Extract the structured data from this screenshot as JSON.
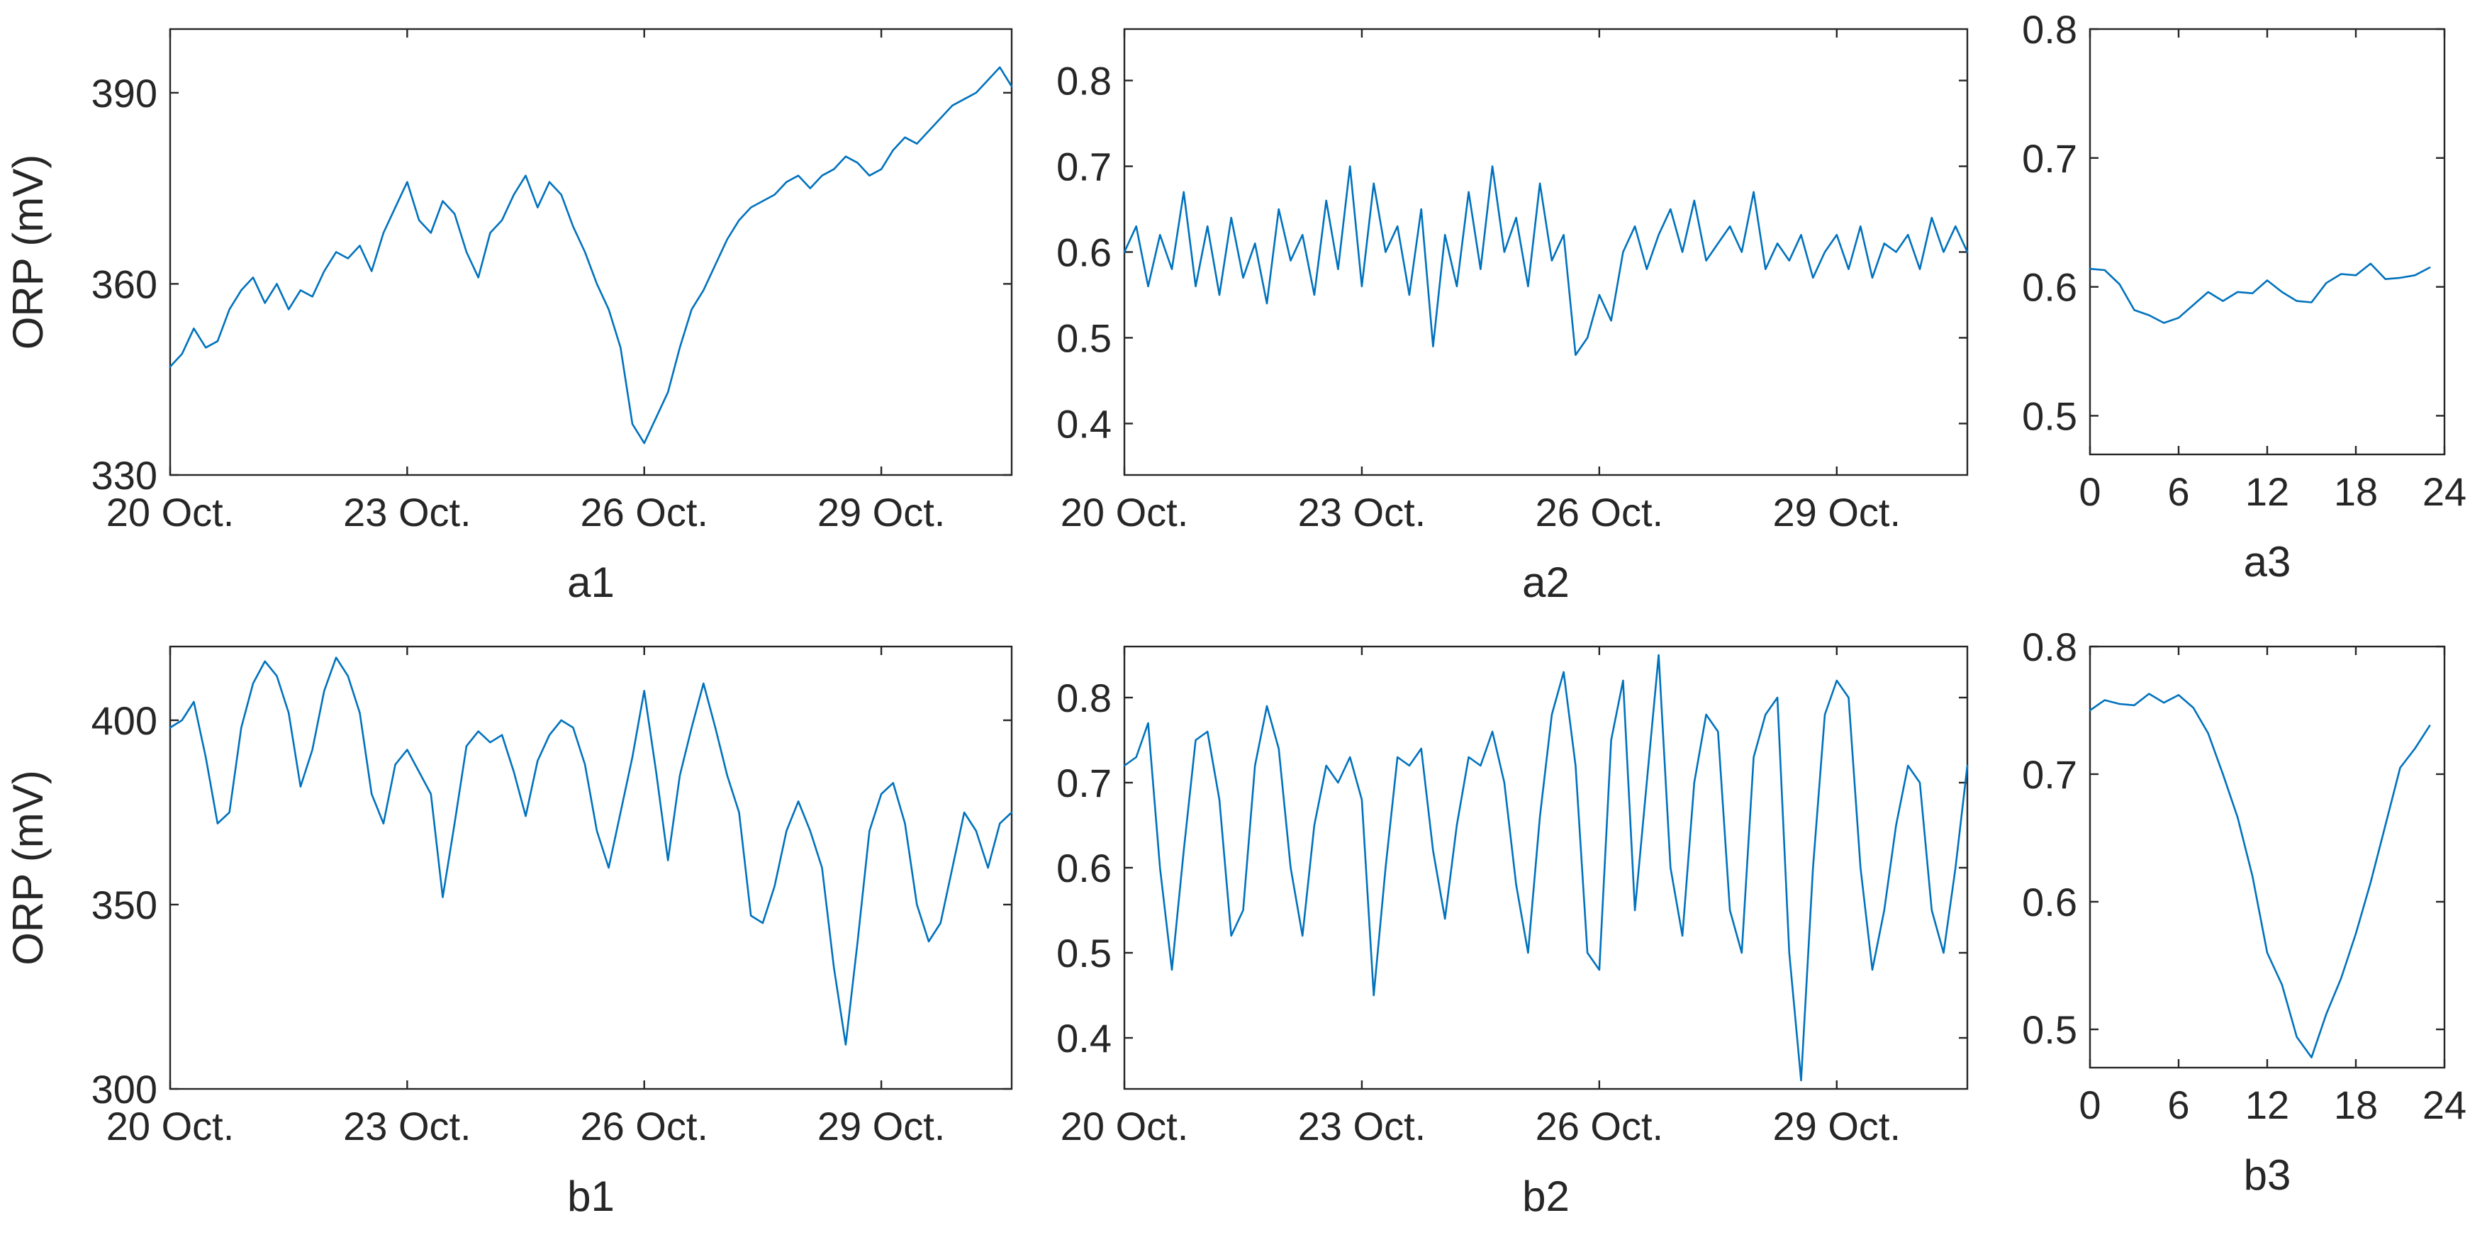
{
  "colors": {
    "series": "#0072bd",
    "axes": "#262626",
    "background": "#ffffff"
  },
  "chart_data": [
    {
      "id": "a1",
      "type": "line",
      "panel_label": "a1",
      "ylabel": "ORP (mV)",
      "xlabel": "",
      "xlim": [
        0,
        10.65
      ],
      "ylim": [
        330,
        400
      ],
      "xticks": [
        0,
        3,
        6,
        9
      ],
      "xtick_labels": [
        "20 Oct.",
        "23 Oct.",
        "26 Oct.",
        "29 Oct."
      ],
      "yticks": [
        330,
        360,
        390
      ],
      "ytick_labels": [
        "330",
        "360",
        "390"
      ],
      "grid": false,
      "legend": "none",
      "x": [
        0,
        0.15,
        0.3,
        0.45,
        0.6,
        0.75,
        0.9,
        1.05,
        1.2,
        1.35,
        1.5,
        1.65,
        1.8,
        1.95,
        2.1,
        2.25,
        2.4,
        2.55,
        2.7,
        2.85,
        3.0,
        3.15,
        3.3,
        3.45,
        3.6,
        3.75,
        3.9,
        4.05,
        4.2,
        4.35,
        4.5,
        4.65,
        4.8,
        4.95,
        5.1,
        5.25,
        5.4,
        5.55,
        5.7,
        5.85,
        6.0,
        6.15,
        6.3,
        6.45,
        6.6,
        6.75,
        6.9,
        7.05,
        7.2,
        7.35,
        7.5,
        7.65,
        7.8,
        7.95,
        8.1,
        8.25,
        8.4,
        8.55,
        8.7,
        8.85,
        9.0,
        9.15,
        9.3,
        9.45,
        9.6,
        9.75,
        9.9,
        10.05,
        10.2,
        10.35,
        10.5,
        10.65
      ],
      "y": [
        347,
        349,
        353,
        350,
        351,
        356,
        359,
        361,
        357,
        360,
        356,
        359,
        358,
        362,
        365,
        364,
        366,
        362,
        368,
        372,
        376,
        370,
        368,
        373,
        371,
        365,
        361,
        368,
        370,
        374,
        377,
        372,
        376,
        374,
        369,
        365,
        360,
        356,
        350,
        338,
        335,
        339,
        343,
        350,
        356,
        359,
        363,
        367,
        370,
        372,
        373,
        374,
        376,
        377,
        375,
        377,
        378,
        380,
        379,
        377,
        378,
        381,
        383,
        382,
        384,
        386,
        388,
        389,
        390,
        392,
        394,
        391
      ]
    },
    {
      "id": "a2",
      "type": "line",
      "panel_label": "a2",
      "ylabel": "",
      "xlabel": "",
      "xlim": [
        0,
        10.65
      ],
      "ylim": [
        0.34,
        0.86
      ],
      "xticks": [
        0,
        3,
        6,
        9
      ],
      "xtick_labels": [
        "20 Oct.",
        "23 Oct.",
        "26 Oct.",
        "29 Oct."
      ],
      "yticks": [
        0.4,
        0.5,
        0.6,
        0.7,
        0.8
      ],
      "ytick_labels": [
        "0.4",
        "0.5",
        "0.6",
        "0.7",
        "0.8"
      ],
      "grid": false,
      "legend": "none",
      "x": [
        0,
        0.15,
        0.3,
        0.45,
        0.6,
        0.75,
        0.9,
        1.05,
        1.2,
        1.35,
        1.5,
        1.65,
        1.8,
        1.95,
        2.1,
        2.25,
        2.4,
        2.55,
        2.7,
        2.85,
        3.0,
        3.15,
        3.3,
        3.45,
        3.6,
        3.75,
        3.9,
        4.05,
        4.2,
        4.35,
        4.5,
        4.65,
        4.8,
        4.95,
        5.1,
        5.25,
        5.4,
        5.55,
        5.7,
        5.85,
        6.0,
        6.15,
        6.3,
        6.45,
        6.6,
        6.75,
        6.9,
        7.05,
        7.2,
        7.35,
        7.5,
        7.65,
        7.8,
        7.95,
        8.1,
        8.25,
        8.4,
        8.55,
        8.7,
        8.85,
        9.0,
        9.15,
        9.3,
        9.45,
        9.6,
        9.75,
        9.9,
        10.05,
        10.2,
        10.35,
        10.5,
        10.65
      ],
      "y": [
        0.6,
        0.63,
        0.56,
        0.62,
        0.58,
        0.67,
        0.56,
        0.63,
        0.55,
        0.64,
        0.57,
        0.61,
        0.54,
        0.65,
        0.59,
        0.62,
        0.55,
        0.66,
        0.58,
        0.7,
        0.56,
        0.68,
        0.6,
        0.63,
        0.55,
        0.65,
        0.49,
        0.62,
        0.56,
        0.67,
        0.58,
        0.7,
        0.6,
        0.64,
        0.56,
        0.68,
        0.59,
        0.62,
        0.48,
        0.5,
        0.55,
        0.52,
        0.6,
        0.63,
        0.58,
        0.62,
        0.65,
        0.6,
        0.66,
        0.59,
        0.61,
        0.63,
        0.6,
        0.67,
        0.58,
        0.61,
        0.59,
        0.62,
        0.57,
        0.6,
        0.62,
        0.58,
        0.63,
        0.57,
        0.61,
        0.6,
        0.62,
        0.58,
        0.64,
        0.6,
        0.63,
        0.6
      ]
    },
    {
      "id": "a3",
      "type": "line",
      "panel_label": "a3",
      "ylabel": "",
      "xlabel": "",
      "xlim": [
        0,
        24
      ],
      "ylim": [
        0.47,
        0.8
      ],
      "xticks": [
        0,
        6,
        12,
        18,
        24
      ],
      "xtick_labels": [
        "0",
        "6",
        "12",
        "18",
        "24"
      ],
      "yticks": [
        0.5,
        0.6,
        0.7,
        0.8
      ],
      "ytick_labels": [
        "0.5",
        "0.6",
        "0.7",
        "0.8"
      ],
      "grid": false,
      "legend": "none",
      "x": [
        0,
        1,
        2,
        3,
        4,
        5,
        6,
        7,
        8,
        9,
        10,
        11,
        12,
        13,
        14,
        15,
        16,
        17,
        18,
        19,
        20,
        21,
        22,
        23
      ],
      "y": [
        0.614,
        0.613,
        0.602,
        0.582,
        0.578,
        0.572,
        0.576,
        0.586,
        0.596,
        0.589,
        0.596,
        0.595,
        0.605,
        0.596,
        0.589,
        0.588,
        0.603,
        0.61,
        0.609,
        0.618,
        0.606,
        0.607,
        0.609,
        0.615
      ]
    },
    {
      "id": "b1",
      "type": "line",
      "panel_label": "b1",
      "ylabel": "ORP (mV)",
      "xlabel": "",
      "xlim": [
        0,
        10.65
      ],
      "ylim": [
        300,
        420
      ],
      "xticks": [
        0,
        3,
        6,
        9
      ],
      "xtick_labels": [
        "20 Oct.",
        "23 Oct.",
        "26 Oct.",
        "29 Oct."
      ],
      "yticks": [
        300,
        350,
        400
      ],
      "ytick_labels": [
        "300",
        "350",
        "400"
      ],
      "grid": false,
      "legend": "none",
      "x": [
        0,
        0.15,
        0.3,
        0.45,
        0.6,
        0.75,
        0.9,
        1.05,
        1.2,
        1.35,
        1.5,
        1.65,
        1.8,
        1.95,
        2.1,
        2.25,
        2.4,
        2.55,
        2.7,
        2.85,
        3.0,
        3.15,
        3.3,
        3.45,
        3.6,
        3.75,
        3.9,
        4.05,
        4.2,
        4.35,
        4.5,
        4.65,
        4.8,
        4.95,
        5.1,
        5.25,
        5.4,
        5.55,
        5.7,
        5.85,
        6.0,
        6.15,
        6.3,
        6.45,
        6.6,
        6.75,
        6.9,
        7.05,
        7.2,
        7.35,
        7.5,
        7.65,
        7.8,
        7.95,
        8.1,
        8.25,
        8.4,
        8.55,
        8.7,
        8.85,
        9.0,
        9.15,
        9.3,
        9.45,
        9.6,
        9.75,
        9.9,
        10.05,
        10.2,
        10.35,
        10.5,
        10.65
      ],
      "y": [
        398,
        400,
        405,
        390,
        372,
        375,
        398,
        410,
        416,
        412,
        402,
        382,
        392,
        408,
        417,
        412,
        402,
        380,
        372,
        388,
        392,
        386,
        380,
        352,
        372,
        393,
        397,
        394,
        396,
        386,
        374,
        389,
        396,
        400,
        398,
        388,
        370,
        360,
        375,
        390,
        408,
        386,
        362,
        385,
        398,
        410,
        398,
        385,
        375,
        347,
        345,
        355,
        370,
        378,
        370,
        360,
        333,
        312,
        340,
        370,
        380,
        383,
        372,
        350,
        340,
        345,
        360,
        375,
        370,
        360,
        372,
        375
      ]
    },
    {
      "id": "b2",
      "type": "line",
      "panel_label": "b2",
      "ylabel": "",
      "xlabel": "",
      "xlim": [
        0,
        10.65
      ],
      "ylim": [
        0.34,
        0.86
      ],
      "xticks": [
        0,
        3,
        6,
        9
      ],
      "xtick_labels": [
        "20 Oct.",
        "23 Oct.",
        "26 Oct.",
        "29 Oct."
      ],
      "yticks": [
        0.4,
        0.5,
        0.6,
        0.7,
        0.8
      ],
      "ytick_labels": [
        "0.4",
        "0.5",
        "0.6",
        "0.7",
        "0.8"
      ],
      "grid": false,
      "legend": "none",
      "x": [
        0,
        0.15,
        0.3,
        0.45,
        0.6,
        0.75,
        0.9,
        1.05,
        1.2,
        1.35,
        1.5,
        1.65,
        1.8,
        1.95,
        2.1,
        2.25,
        2.4,
        2.55,
        2.7,
        2.85,
        3.0,
        3.15,
        3.3,
        3.45,
        3.6,
        3.75,
        3.9,
        4.05,
        4.2,
        4.35,
        4.5,
        4.65,
        4.8,
        4.95,
        5.1,
        5.25,
        5.4,
        5.55,
        5.7,
        5.85,
        6.0,
        6.15,
        6.3,
        6.45,
        6.6,
        6.75,
        6.9,
        7.05,
        7.2,
        7.35,
        7.5,
        7.65,
        7.8,
        7.95,
        8.1,
        8.25,
        8.4,
        8.55,
        8.7,
        8.85,
        9.0,
        9.15,
        9.3,
        9.45,
        9.6,
        9.75,
        9.9,
        10.05,
        10.2,
        10.35,
        10.5,
        10.65
      ],
      "y": [
        0.72,
        0.73,
        0.77,
        0.6,
        0.48,
        0.62,
        0.75,
        0.76,
        0.68,
        0.52,
        0.55,
        0.72,
        0.79,
        0.74,
        0.6,
        0.52,
        0.65,
        0.72,
        0.7,
        0.73,
        0.68,
        0.45,
        0.6,
        0.73,
        0.72,
        0.74,
        0.62,
        0.54,
        0.65,
        0.73,
        0.72,
        0.76,
        0.7,
        0.58,
        0.5,
        0.66,
        0.78,
        0.83,
        0.72,
        0.5,
        0.48,
        0.75,
        0.82,
        0.55,
        0.7,
        0.85,
        0.6,
        0.52,
        0.7,
        0.78,
        0.76,
        0.55,
        0.5,
        0.73,
        0.78,
        0.8,
        0.5,
        0.35,
        0.6,
        0.78,
        0.82,
        0.8,
        0.6,
        0.48,
        0.55,
        0.65,
        0.72,
        0.7,
        0.55,
        0.5,
        0.6,
        0.72
      ]
    },
    {
      "id": "b3",
      "type": "line",
      "panel_label": "b3",
      "ylabel": "",
      "xlabel": "",
      "xlim": [
        0,
        24
      ],
      "ylim": [
        0.47,
        0.8
      ],
      "xticks": [
        0,
        6,
        12,
        18,
        24
      ],
      "xtick_labels": [
        "0",
        "6",
        "12",
        "18",
        "24"
      ],
      "yticks": [
        0.5,
        0.6,
        0.7,
        0.8
      ],
      "ytick_labels": [
        "0.5",
        "0.6",
        "0.7",
        "0.8"
      ],
      "grid": false,
      "legend": "none",
      "x": [
        0,
        1,
        2,
        3,
        4,
        5,
        6,
        7,
        8,
        9,
        10,
        11,
        12,
        13,
        14,
        15,
        16,
        17,
        18,
        19,
        20,
        21,
        22,
        23
      ],
      "y": [
        0.75,
        0.758,
        0.755,
        0.754,
        0.763,
        0.756,
        0.762,
        0.752,
        0.732,
        0.7,
        0.666,
        0.62,
        0.56,
        0.535,
        0.494,
        0.478,
        0.512,
        0.54,
        0.575,
        0.615,
        0.66,
        0.705,
        0.72,
        0.738
      ]
    }
  ]
}
